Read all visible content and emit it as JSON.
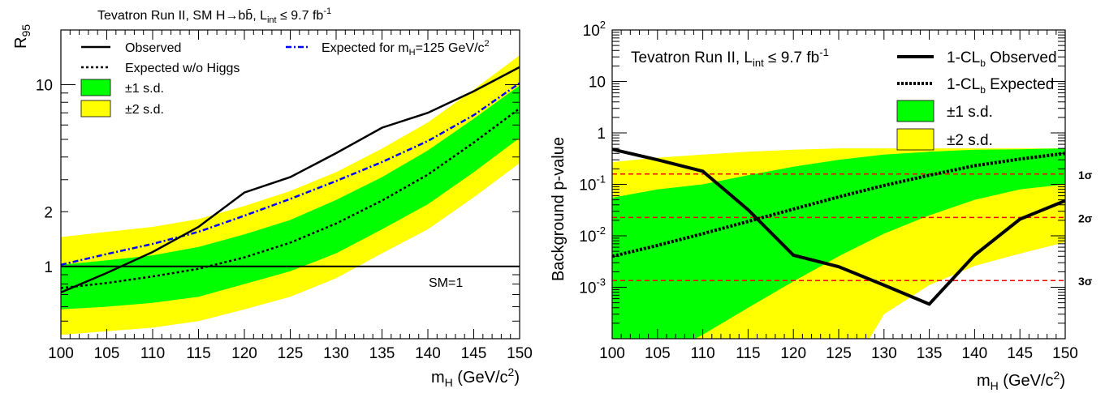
{
  "chart_data": [
    {
      "type": "line",
      "title": "Tevatron Run II,   SM H→bb̄,   L",
      "title_sub": "int",
      "title_tail": " ≤ 9.7 fb",
      "title_sup": "-1",
      "ylabel": "R",
      "ylabel_sub": "95",
      "xlabel": "m",
      "xlabel_sub": "H",
      "xlabel_tail": " (GeV/c",
      "xlabel_sup": "2",
      "xlabel_end": ")",
      "xlim": [
        100,
        150
      ],
      "ylim": [
        0.4,
        20
      ],
      "y_log": true,
      "x_ticks": [
        "100",
        "105",
        "110",
        "115",
        "120",
        "125",
        "130",
        "135",
        "140",
        "145",
        "150"
      ],
      "y_ticks": [
        {
          "value": 1,
          "label": "1"
        },
        {
          "value": 2,
          "label": "2"
        },
        {
          "value": 10,
          "label": "10"
        }
      ],
      "x": [
        100,
        105,
        110,
        115,
        120,
        125,
        130,
        135,
        140,
        145,
        150
      ],
      "series": [
        {
          "name": "Observed",
          "values": [
            0.72,
            0.92,
            1.2,
            1.65,
            2.55,
            3.1,
            4.2,
            5.8,
            7.0,
            9.2,
            12.5
          ]
        },
        {
          "name": "Expected w/o Higgs",
          "values": [
            0.76,
            0.81,
            0.88,
            0.97,
            1.12,
            1.35,
            1.72,
            2.3,
            3.2,
            4.8,
            7.4
          ]
        },
        {
          "name": "Expected for m",
          "values": [
            1.02,
            1.17,
            1.33,
            1.55,
            1.9,
            2.35,
            2.95,
            3.75,
            4.9,
            6.8,
            10.2
          ]
        },
        {
          "name": "±1 s.d.",
          "lower": [
            0.58,
            0.6,
            0.63,
            0.68,
            0.8,
            0.94,
            1.18,
            1.6,
            2.2,
            3.3,
            5.1
          ],
          "upper": [
            1.02,
            1.08,
            1.15,
            1.28,
            1.5,
            1.8,
            2.32,
            3.1,
            4.35,
            6.5,
            9.9
          ]
        },
        {
          "name": "±2 s.d.",
          "lower": [
            0.42,
            0.44,
            0.46,
            0.5,
            0.58,
            0.68,
            0.86,
            1.18,
            1.6,
            2.4,
            3.7
          ],
          "upper": [
            1.45,
            1.55,
            1.65,
            1.82,
            2.15,
            2.6,
            3.3,
            4.45,
            6.2,
            9.4,
            14.5
          ]
        }
      ],
      "legend": {
        "observed": "Observed",
        "expected": "Expected w/o Higgs",
        "expected_mh": "Expected for m",
        "expected_mh_sub": "H",
        "expected_mh_tail": "=125 GeV/c",
        "expected_mh_sup": "2",
        "band1": "±1 s.d.",
        "band2": "±2 s.d."
      },
      "annotation": "SM=1",
      "sm_line": 1,
      "colors": {
        "band1": "#00ff00",
        "band2": "#ffff00",
        "observed": "#000000",
        "expected": "#000000",
        "expected_mh": "#0000ff"
      }
    },
    {
      "type": "line",
      "ylabel": "Background p-value",
      "xlabel": "m",
      "xlabel_sub": "H",
      "xlabel_tail": " (GeV/c",
      "xlabel_sup": "2",
      "xlabel_end": ")",
      "xlim": [
        100,
        150
      ],
      "ylim": [
        0.0001,
        100
      ],
      "y_log": true,
      "x_ticks": [
        "100",
        "105",
        "110",
        "115",
        "120",
        "125",
        "130",
        "135",
        "140",
        "145",
        "150"
      ],
      "y_ticks": [
        {
          "value": 100,
          "base": "10",
          "exp": "2"
        },
        {
          "value": 10,
          "base": "10",
          "exp": ""
        },
        {
          "value": 1,
          "base": "1",
          "exp": ""
        },
        {
          "value": 0.1,
          "base": "10",
          "exp": "-1"
        },
        {
          "value": 0.01,
          "base": "10",
          "exp": "-2"
        },
        {
          "value": 0.001,
          "base": "10",
          "exp": "-3"
        }
      ],
      "x": [
        100,
        105,
        110,
        115,
        120,
        125,
        130,
        135,
        140,
        145,
        150
      ],
      "series": [
        {
          "name": "1-CL Observed",
          "values": [
            0.48,
            0.3,
            0.18,
            0.032,
            0.0042,
            0.0025,
            0.0011,
            0.00047,
            0.0042,
            0.021,
            0.048
          ]
        },
        {
          "name": "1-CL Expected",
          "values": [
            0.004,
            0.0065,
            0.011,
            0.019,
            0.033,
            0.057,
            0.095,
            0.15,
            0.23,
            0.31,
            0.4
          ]
        },
        {
          "name": "±1 s.d.",
          "lower": [
            2e-05,
            4e-05,
            0.00012,
            0.0004,
            0.0013,
            0.004,
            0.011,
            0.025,
            0.05,
            0.08,
            0.1
          ],
          "upper": [
            0.055,
            0.08,
            0.1,
            0.15,
            0.22,
            0.3,
            0.38,
            0.43,
            0.47,
            0.48,
            0.5
          ]
        },
        {
          "name": "±2 s.d.",
          "lower": [
            1e-05,
            1e-05,
            1e-05,
            1e-05,
            1e-05,
            1e-05,
            0.0003,
            0.0011,
            0.0026,
            0.0045,
            0.0075
          ],
          "upper": [
            0.27,
            0.33,
            0.38,
            0.43,
            0.47,
            0.5,
            0.5,
            0.5,
            0.5,
            0.5,
            0.5
          ]
        }
      ],
      "legend": {
        "panel_title": "Tevatron Run II, L",
        "panel_title_sub": "int",
        "panel_title_tail": " ≤ 9.7 fb",
        "panel_title_sup": "-1",
        "observed_pre": "1-CL",
        "observed_sub": "b",
        "observed_tail": " Observed",
        "expected_pre": "1-CL",
        "expected_sub": "b",
        "expected_tail": " Expected",
        "band1": "±1 s.d.",
        "band2": "±2 s.d."
      },
      "sigma_lines": [
        {
          "label": "1σ",
          "value": 0.1587
        },
        {
          "label": "2σ",
          "value": 0.02275
        },
        {
          "label": "3σ",
          "value": 0.00135
        }
      ],
      "colors": {
        "band1": "#00ff00",
        "band2": "#ffff00",
        "observed": "#000000",
        "expected": "#000000",
        "sigma": "#ff0000"
      }
    }
  ]
}
